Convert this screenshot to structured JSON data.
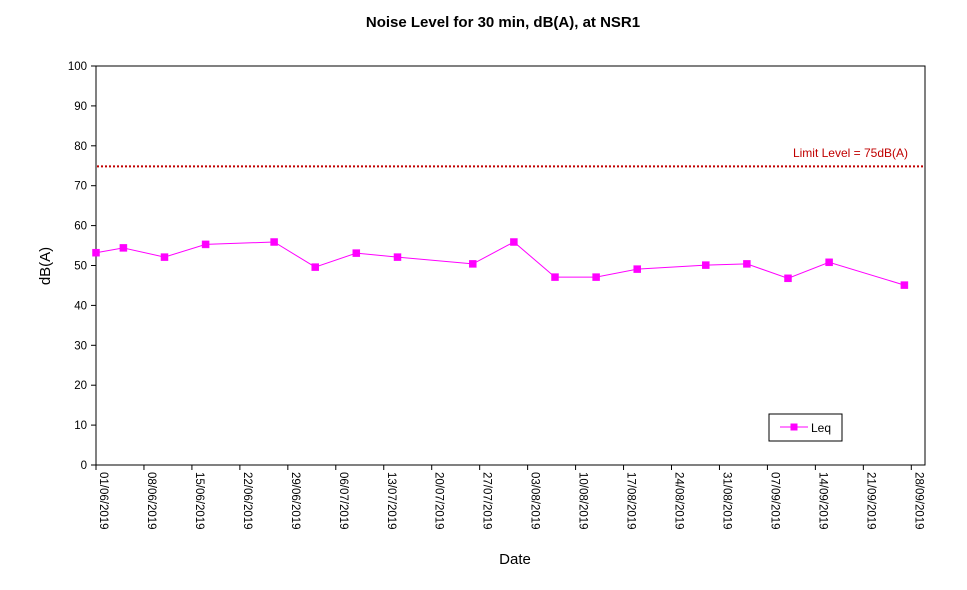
{
  "chart_data": {
    "type": "line",
    "title": "Noise Level for 30 min, dB(A), at NSR1",
    "xlabel": "Date",
    "ylabel": "dB(A)",
    "ylim": [
      0,
      100
    ],
    "yticks": [
      0,
      10,
      20,
      30,
      40,
      50,
      60,
      70,
      80,
      90,
      100
    ],
    "xlim": [
      "2019-06-01",
      "2019-09-30"
    ],
    "xticks": [
      "01/06/2019",
      "08/06/2019",
      "15/06/2019",
      "22/06/2019",
      "29/06/2019",
      "06/07/2019",
      "13/07/2019",
      "20/07/2019",
      "27/07/2019",
      "03/08/2019",
      "10/08/2019",
      "17/08/2019",
      "24/08/2019",
      "31/08/2019",
      "07/09/2019",
      "14/09/2019",
      "21/09/2019",
      "28/09/2019"
    ],
    "grid": false,
    "legend": {
      "position": "bottom-right",
      "entries": [
        "Leq"
      ]
    },
    "series": [
      {
        "name": "Leq",
        "color": "#ff00ff",
        "marker": "square",
        "points": [
          {
            "x": "2019-06-01",
            "y": 53.2
          },
          {
            "x": "2019-06-05",
            "y": 54.4
          },
          {
            "x": "2019-06-11",
            "y": 52.1
          },
          {
            "x": "2019-06-17",
            "y": 55.3
          },
          {
            "x": "2019-06-27",
            "y": 55.9
          },
          {
            "x": "2019-07-03",
            "y": 49.6
          },
          {
            "x": "2019-07-09",
            "y": 53.1
          },
          {
            "x": "2019-07-15",
            "y": 52.1
          },
          {
            "x": "2019-07-26",
            "y": 50.4
          },
          {
            "x": "2019-08-01",
            "y": 55.9
          },
          {
            "x": "2019-08-07",
            "y": 47.1
          },
          {
            "x": "2019-08-13",
            "y": 47.1
          },
          {
            "x": "2019-08-19",
            "y": 49.1
          },
          {
            "x": "2019-08-29",
            "y": 50.1
          },
          {
            "x": "2019-09-04",
            "y": 50.4
          },
          {
            "x": "2019-09-10",
            "y": 46.8
          },
          {
            "x": "2019-09-16",
            "y": 50.8
          },
          {
            "x": "2019-09-27",
            "y": 45.1
          }
        ]
      }
    ],
    "reference_line": {
      "label": "Limit Level  = 75dB(A)",
      "y": 75,
      "color": "#c00000",
      "style": "dotted"
    }
  }
}
